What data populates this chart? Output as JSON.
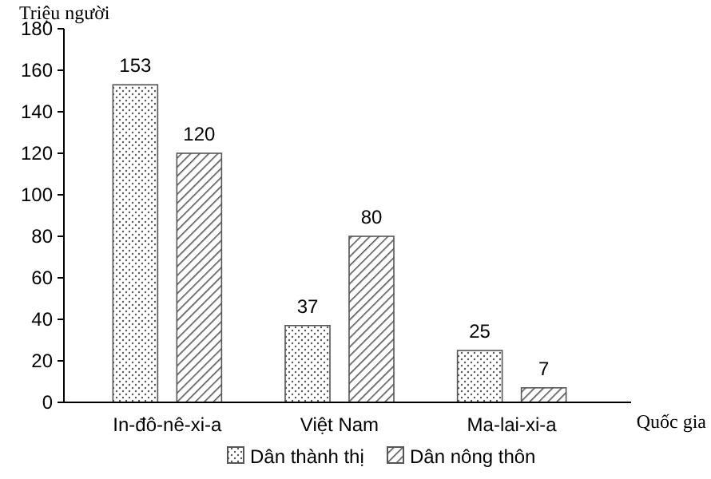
{
  "chart_data": {
    "type": "bar",
    "ylabel": "Triệu người",
    "xlabel": "Quốc gia",
    "categories": [
      "In-đô-nê-xi-a",
      "Việt Nam",
      "Ma-lai-xi-a"
    ],
    "series": [
      {
        "name": "Dân thành thị",
        "color": "#555555",
        "values": [
          153,
          37,
          25
        ]
      },
      {
        "name": "Dân nông thôn",
        "color": "#555555",
        "values": [
          120,
          80,
          7
        ]
      }
    ],
    "ylim": [
      0,
      180
    ],
    "yticks": [
      0,
      20,
      40,
      60,
      80,
      100,
      120,
      140,
      160,
      180
    ],
    "data_labels": true,
    "legend": "bottom",
    "grid": false
  }
}
